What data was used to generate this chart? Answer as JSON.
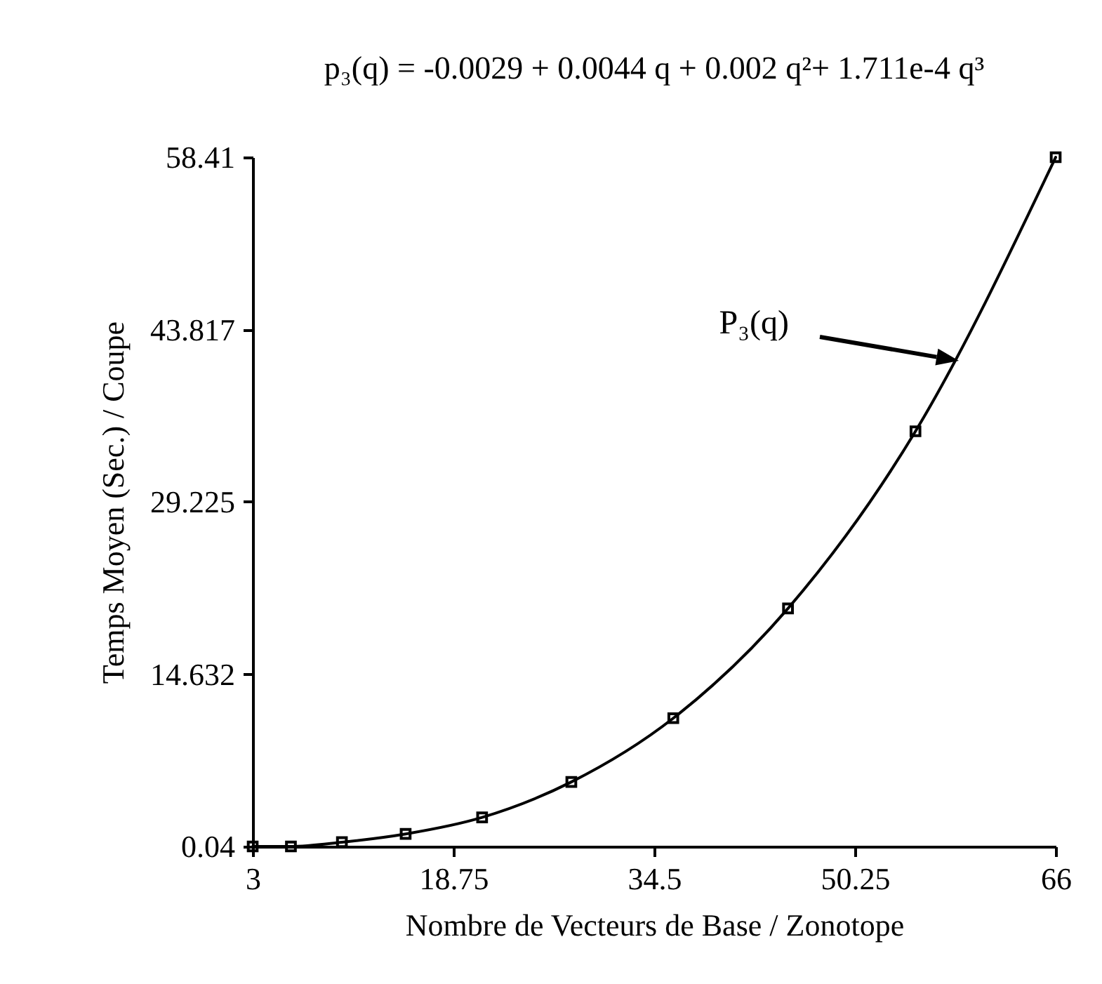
{
  "chart_data": {
    "type": "line",
    "title": "p₃(q) = -0.0029 + 0.0044 q + 0.002 q²+ 1.711e-4 q³",
    "xlabel": "Nombre de Vecteurs de Base / Zonotope",
    "ylabel": "Temps Moyen (Sec.) / Coupe",
    "x": [
      3,
      6,
      10,
      15,
      21,
      28,
      36,
      45,
      55,
      66
    ],
    "series": [
      {
        "color": "#000000",
        "values": [
          0.04,
          0.04,
          0.4,
          1.1,
          2.5,
          5.5,
          10.9,
          20.2,
          35.2,
          58.41
        ]
      }
    ],
    "xlim": [
      3,
      66
    ],
    "ylim": [
      0.04,
      58.41
    ],
    "xticks": [
      3,
      18.75,
      34.5,
      50.25,
      66
    ],
    "yticks": [
      0.04,
      14.632,
      29.225,
      43.817,
      58.41
    ],
    "marker": "square",
    "line_style": "solid",
    "annotations": [
      "P₃(q)"
    ]
  }
}
